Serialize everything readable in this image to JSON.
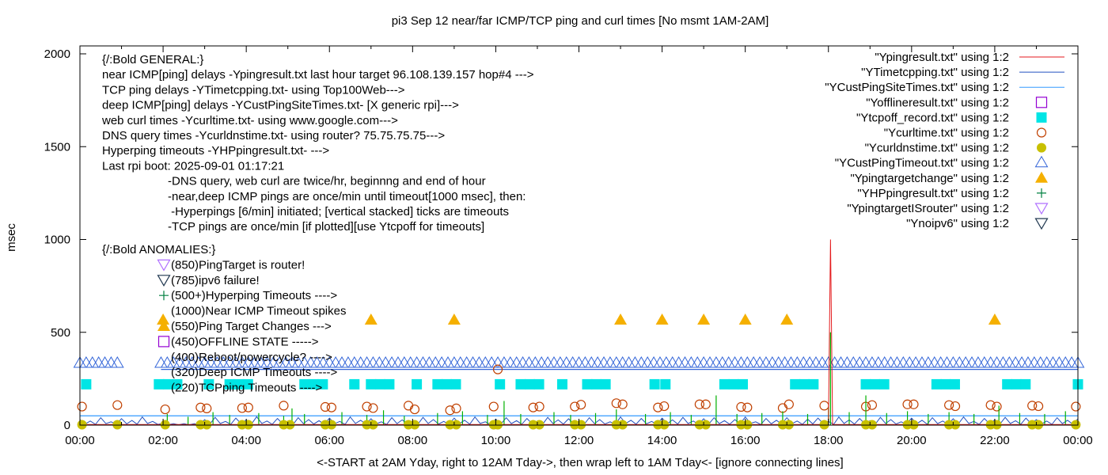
{
  "chart_data": {
    "type": "line",
    "title": "pi3 Sep 12  near/far ICMP/TCP ping and curl times [No msmt 1AM-2AM]",
    "xlabel": "<-START at 2AM Yday, right to 12AM Tday->, then wrap left to 1AM Tday<- [ignore connecting lines]",
    "ylabel": "msec",
    "xlim": [
      "00:00",
      "24:00"
    ],
    "ylim": [
      0,
      2050
    ],
    "x_ticks": [
      "00:00",
      "02:00",
      "04:00",
      "06:00",
      "08:00",
      "10:00",
      "12:00",
      "14:00",
      "16:00",
      "18:00",
      "20:00",
      "22:00",
      "00:00"
    ],
    "y_ticks": [
      "0",
      "500",
      "1000",
      "1500",
      "2000"
    ],
    "grid": false,
    "legend_placement": "top-right",
    "legend": [
      {
        "label": "\"Ypingresult.txt\" using 1:2",
        "style": "line",
        "color": "#e41a1c"
      },
      {
        "label": "\"YTimetcpping.txt\" using 1:2",
        "style": "line",
        "color": "#2050c0"
      },
      {
        "label": "\"YCustPingSiteTimes.txt\" using 1:2",
        "style": "line",
        "color": "#3399ff"
      },
      {
        "label": "\"Yofflineresult.txt\" using 1:2",
        "style": "open-square",
        "color": "#9400d3"
      },
      {
        "label": "\"Ytcpoff_record.txt\" using 1:2",
        "style": "filled-square",
        "color": "#00e5e5"
      },
      {
        "label": "\"Ycurltime.txt\" using 1:2",
        "style": "open-circle",
        "color": "#c04000"
      },
      {
        "label": "\"Ycurldnstime.txt\" using 1:2",
        "style": "filled-circle",
        "color": "#c8c000"
      },
      {
        "label": "\"YCustPingTimeout.txt\" using 1:2",
        "style": "open-triangle",
        "color": "#3264d8"
      },
      {
        "label": "\"Ypingtargetchange\" using 1:2",
        "style": "filled-triangle",
        "color": "#f5b000"
      },
      {
        "label": "\"YHPpingresult.txt\" using 1:2",
        "style": "plus",
        "color": "#008040"
      },
      {
        "label": "\"YpingtargetISrouter\" using 1:2",
        "style": "open-down-triangle",
        "color": "#b070ff"
      },
      {
        "label": "\"Ynoipv6\" using 1:2",
        "style": "open-down-triangle",
        "color": "#203850"
      }
    ],
    "annotations_general": [
      "{/:Bold GENERAL:}",
      "near ICMP[ping] delays -Ypingresult.txt last hour target 96.108.139.157 hop#4 --->",
      "TCP ping delays -YTimetcpping.txt- using Top100Web--->",
      "deep ICMP[ping] delays -YCustPingSiteTimes.txt- [X generic rpi]--->",
      "web curl times -Ycurltime.txt- using www.google.com--->",
      "DNS query times -Ycurldnstime.txt- using router? 75.75.75.75--->",
      "Hyperping timeouts -YHPpingresult.txt- --->",
      "Last rpi boot: 2025-09-01 01:17:21",
      "-DNS query, web curl are twice/hr, beginnng and end of hour",
      "-near,deep ICMP pings are once/min until timeout[1000 msec], then:",
      " -Hyperpings [6/min] initiated; [vertical stacked] ticks are timeouts",
      "-TCP pings are once/min [if plotted][use Ytcpoff for timeouts]"
    ],
    "annotations_anomalies": [
      {
        "text": "{/:Bold ANOMALIES:}",
        "symbol": ""
      },
      {
        "text": "(850)PingTarget is router!",
        "symbol": "open-down-triangle",
        "color": "#b070ff"
      },
      {
        "text": "(785)ipv6 failure!",
        "symbol": "open-down-triangle",
        "color": "#203850"
      },
      {
        "text": "(500+)Hyperping Timeouts ---->",
        "symbol": "plus",
        "color": "#008040"
      },
      {
        "text": "(1000)Near ICMP Timeout spikes",
        "symbol": ""
      },
      {
        "text": "(550)Ping Target Changes --->",
        "symbol": "filled-triangle",
        "color": "#f5b000"
      },
      {
        "text": "(450)OFFLINE STATE ----->",
        "symbol": "open-square",
        "color": "#9400d3"
      },
      {
        "text": "(400)Reboot/powercycle? ---->",
        "symbol": ""
      },
      {
        "text": "(320)Deep ICMP Timeouts ---->",
        "symbol": ""
      },
      {
        "text": "(220)TCPping Timeouts ---->",
        "symbol": ""
      }
    ],
    "series": {
      "Ypingresult": [
        [
          0,
          3
        ],
        [
          18.0,
          3
        ],
        [
          18.05,
          1000
        ],
        [
          18.1,
          3
        ],
        [
          24,
          3
        ]
      ],
      "YCustPingSiteTimes": [
        [
          0,
          50
        ],
        [
          24,
          50
        ]
      ],
      "YTimetcpping_step_hours": 0.25,
      "YTimetcpping": [
        30,
        22,
        40,
        18,
        35,
        25,
        44,
        20,
        10,
        8,
        8,
        8,
        30,
        42,
        20,
        38,
        28,
        45,
        22,
        36,
        18,
        40,
        30,
        24,
        38,
        20,
        44,
        26,
        34,
        18,
        40,
        28,
        22,
        42,
        30,
        20,
        38,
        26,
        44,
        18,
        32,
        40,
        24,
        36,
        20,
        42,
        28,
        34,
        22,
        40,
        30,
        18,
        44,
        26,
        36,
        20,
        38,
        28,
        42,
        22,
        34,
        40,
        24,
        30,
        44,
        18,
        36,
        26,
        40,
        22,
        32,
        38,
        20,
        44,
        28,
        36,
        24,
        42,
        30,
        18,
        38,
        26,
        40,
        22,
        34,
        44,
        20,
        36,
        28,
        42,
        24,
        38,
        30,
        22,
        40,
        26,
        34
      ],
      "YHPpingresult": [
        [
          2.1,
          60
        ],
        [
          2.6,
          45
        ],
        [
          3.2,
          70
        ],
        [
          3.6,
          55
        ],
        [
          4.3,
          65
        ],
        [
          4.9,
          50
        ],
        [
          5.1,
          90
        ],
        [
          5.4,
          60
        ],
        [
          6.3,
          70
        ],
        [
          6.9,
          55
        ],
        [
          7.3,
          80
        ],
        [
          7.8,
          50
        ],
        [
          8.6,
          65
        ],
        [
          9.2,
          75
        ],
        [
          9.8,
          55
        ],
        [
          10.2,
          130
        ],
        [
          10.6,
          60
        ],
        [
          11.4,
          70
        ],
        [
          11.8,
          55
        ],
        [
          12.4,
          65
        ],
        [
          12.9,
          85
        ],
        [
          13.6,
          60
        ],
        [
          14.2,
          70
        ],
        [
          14.7,
          55
        ],
        [
          15.3,
          160
        ],
        [
          15.8,
          60
        ],
        [
          16.4,
          65
        ],
        [
          16.9,
          75
        ],
        [
          17.5,
          60
        ],
        [
          18.0,
          95
        ],
        [
          18.05,
          500
        ],
        [
          18.5,
          70
        ],
        [
          18.9,
          160
        ],
        [
          19.4,
          65
        ],
        [
          19.9,
          75
        ],
        [
          20.4,
          60
        ],
        [
          20.9,
          70
        ],
        [
          21.5,
          60
        ],
        [
          22.1,
          105
        ],
        [
          22.6,
          65
        ],
        [
          23.2,
          60
        ],
        [
          23.7,
          75
        ]
      ],
      "Ycurltime": [
        [
          0.05,
          100
        ],
        [
          0.9,
          108
        ],
        [
          2.05,
          85
        ],
        [
          2.9,
          95
        ],
        [
          3.05,
          90
        ],
        [
          3.9,
          92
        ],
        [
          4.05,
          95
        ],
        [
          4.9,
          105
        ],
        [
          5.9,
          98
        ],
        [
          6.05,
          95
        ],
        [
          6.9,
          100
        ],
        [
          7.05,
          92
        ],
        [
          7.9,
          105
        ],
        [
          8.05,
          85
        ],
        [
          8.9,
          80
        ],
        [
          9.05,
          90
        ],
        [
          9.95,
          100
        ],
        [
          10.05,
          300
        ],
        [
          10.9,
          95
        ],
        [
          11.05,
          100
        ],
        [
          11.9,
          100
        ],
        [
          12.05,
          110
        ],
        [
          12.9,
          118
        ],
        [
          13.05,
          112
        ],
        [
          13.9,
          95
        ],
        [
          14.05,
          102
        ],
        [
          14.9,
          112
        ],
        [
          15.05,
          112
        ],
        [
          15.9,
          98
        ],
        [
          16.05,
          95
        ],
        [
          16.9,
          92
        ],
        [
          17.05,
          112
        ],
        [
          17.9,
          105
        ],
        [
          18.9,
          100
        ],
        [
          19.05,
          108
        ],
        [
          19.9,
          112
        ],
        [
          20.05,
          112
        ],
        [
          20.9,
          108
        ],
        [
          21.05,
          102
        ],
        [
          21.9,
          108
        ],
        [
          22.05,
          100
        ],
        [
          22.9,
          105
        ],
        [
          23.05,
          102
        ],
        [
          23.95,
          100
        ]
      ],
      "Ycurldnstime": [
        [
          0.05,
          2
        ],
        [
          0.9,
          2
        ],
        [
          2.05,
          2
        ],
        [
          2.9,
          2
        ],
        [
          3.05,
          2
        ],
        [
          3.9,
          2
        ],
        [
          4.05,
          2
        ],
        [
          4.9,
          2
        ],
        [
          5.05,
          2
        ],
        [
          5.9,
          2
        ],
        [
          6.05,
          2
        ],
        [
          6.9,
          2
        ],
        [
          7.05,
          2
        ],
        [
          7.9,
          2
        ],
        [
          8.05,
          2
        ],
        [
          8.9,
          2
        ],
        [
          9.05,
          2
        ],
        [
          9.95,
          2
        ],
        [
          10.05,
          2
        ],
        [
          10.9,
          2
        ],
        [
          11.05,
          2
        ],
        [
          11.9,
          2
        ],
        [
          12.05,
          2
        ],
        [
          12.9,
          2
        ],
        [
          13.05,
          2
        ],
        [
          13.9,
          2
        ],
        [
          14.05,
          2
        ],
        [
          14.9,
          2
        ],
        [
          15.05,
          2
        ],
        [
          15.9,
          2
        ],
        [
          16.05,
          2
        ],
        [
          16.9,
          2
        ],
        [
          17.05,
          2
        ],
        [
          17.9,
          2
        ],
        [
          18.9,
          2
        ],
        [
          19.05,
          2
        ],
        [
          19.9,
          2
        ],
        [
          20.05,
          2
        ],
        [
          20.9,
          2
        ],
        [
          21.05,
          2
        ],
        [
          21.9,
          2
        ],
        [
          22.05,
          2
        ],
        [
          22.9,
          2
        ],
        [
          23.05,
          2
        ],
        [
          23.95,
          2
        ]
      ],
      "YCustPingTimeout_value": 320,
      "YCustPingTimeout_ranges": [
        [
          0,
          0.95
        ],
        [
          1.95,
          24
        ]
      ],
      "Ytcpoff_record_value": 220,
      "Ytcpoff_record": [
        0.15,
        1.9,
        2.12,
        2.34,
        3.1,
        3.6,
        3.82,
        4.04,
        5.4,
        5.62,
        5.84,
        6.6,
        7.0,
        7.22,
        7.44,
        8.1,
        8.6,
        8.82,
        9.04,
        10.1,
        10.6,
        10.82,
        11.04,
        11.6,
        12.2,
        12.42,
        12.64,
        13.82,
        14.08,
        15.5,
        15.72,
        15.94,
        17.2,
        17.42,
        17.64,
        18.9,
        19.12,
        19.34,
        20.6,
        20.82,
        21.04,
        22.3,
        22.52,
        22.74,
        24.0
      ],
      "Ypingtargetchange_value": 550,
      "Ypingtargetchange": [
        2.0,
        7.0,
        9.0,
        13.0,
        14.0,
        15.0,
        16.0,
        17.0,
        22.0
      ]
    }
  }
}
